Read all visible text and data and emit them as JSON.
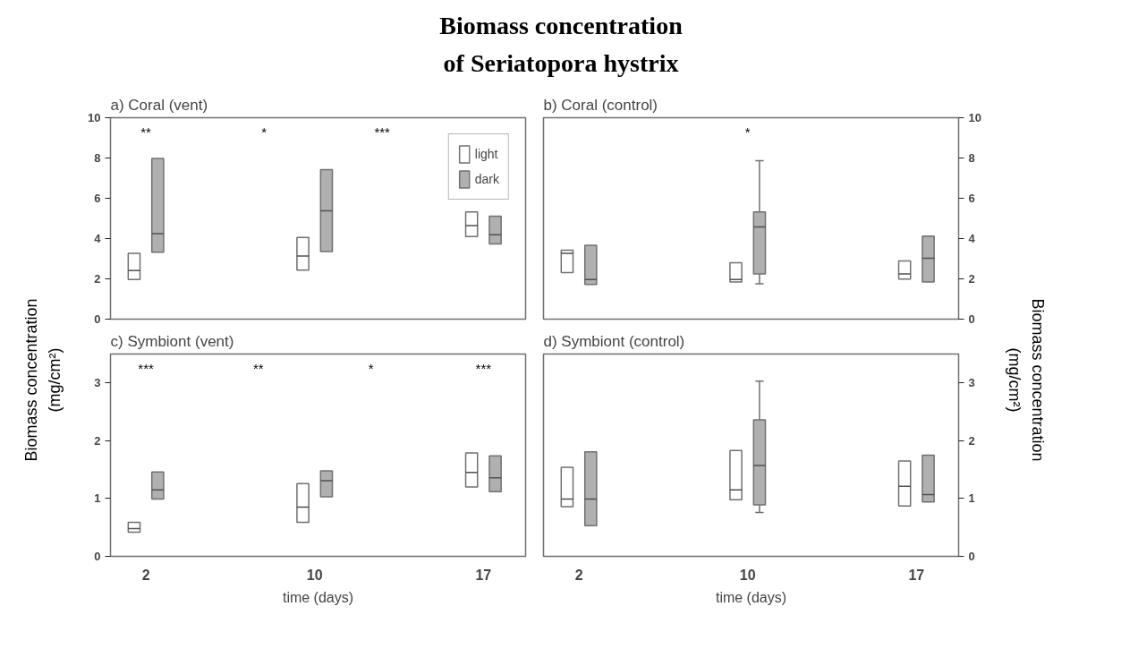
{
  "chart_data": [
    {
      "type": "box",
      "title": "Biomass concentration\nof Seriatopora hystrix",
      "subtitle": "a) Coral (vent)",
      "ylabel": "Biomass concentration\n(mg/cm²)",
      "categories": [
        "2",
        "10",
        "17"
      ],
      "ylim": [
        0,
        10
      ],
      "yticks": [
        0,
        2,
        4,
        6,
        8,
        10
      ],
      "tick_labels": "y",
      "legend": "top right",
      "series": [
        {
          "name": "light",
          "color": "#ffffff",
          "boxes": [
            {
              "low": 1.97,
              "q1": 1.97,
              "median": 2.41,
              "q3": 3.27,
              "high": 3.27
            },
            {
              "low": 2.43,
              "q1": 2.43,
              "median": 3.13,
              "q3": 4.06,
              "high": 4.06
            },
            {
              "low": 4.1,
              "q1": 4.1,
              "median": 4.65,
              "q3": 5.32,
              "high": 5.32
            }
          ]
        },
        {
          "name": "dark",
          "color": "#b0b0b0",
          "boxes": [
            {
              "low": 3.32,
              "q1": 3.32,
              "median": 4.24,
              "q3": 7.98,
              "high": 7.98
            },
            {
              "low": 3.36,
              "q1": 3.36,
              "median": 5.38,
              "q3": 7.42,
              "high": 7.42
            },
            {
              "low": 3.73,
              "q1": 3.73,
              "median": 4.19,
              "q3": 5.11,
              "high": 5.11
            }
          ]
        }
      ],
      "annotations": [
        "**",
        "*",
        "***"
      ]
    },
    {
      "type": "box",
      "subtitle": "b) Coral (control)",
      "y2label": "Biomass concentration\n(mg/cm²)",
      "categories": [
        "2",
        "10",
        "17"
      ],
      "y2lim": [
        0,
        10
      ],
      "y2ticks": [
        0,
        2,
        4,
        6,
        8,
        10
      ],
      "tick_labels": "y",
      "series": [
        {
          "color": "#ffffff",
          "axis": "y2",
          "boxes": [
            {
              "low": 2.31,
              "q1": 2.31,
              "median": 3.27,
              "q3": 3.42,
              "high": 3.42
            },
            {
              "low": 1.84,
              "q1": 1.84,
              "median": 1.97,
              "q3": 2.8,
              "high": 2.8
            },
            {
              "low": 1.99,
              "q1": 1.99,
              "median": 2.24,
              "q3": 2.89,
              "high": 2.89
            }
          ]
        },
        {
          "color": "#b0b0b0",
          "axis": "y2",
          "boxes": [
            {
              "low": 1.72,
              "q1": 1.72,
              "median": 1.97,
              "q3": 3.67,
              "high": 3.67
            },
            {
              "low": 1.76,
              "q1": 2.24,
              "median": 4.58,
              "q3": 5.32,
              "high": 7.87
            },
            {
              "low": 1.84,
              "q1": 1.84,
              "median": 3.02,
              "q3": 4.12,
              "high": 4.12
            }
          ]
        }
      ],
      "annotations": [
        "*"
      ]
    },
    {
      "type": "box",
      "subtitle": "c) Symbiont (vent)",
      "xlabel": "time (days)",
      "categories": [
        "2",
        "10",
        "17"
      ],
      "ylim": [
        0,
        3.5
      ],
      "yticks": [
        0,
        1,
        2,
        3
      ],
      "series": [
        {
          "color": "#ffffff",
          "boxes": [
            {
              "low": 0.42,
              "q1": 0.42,
              "median": 0.48,
              "q3": 0.59,
              "high": 0.59
            },
            {
              "low": 0.59,
              "q1": 0.59,
              "median": 0.85,
              "q3": 1.26,
              "high": 1.26
            },
            {
              "low": 1.2,
              "q1": 1.2,
              "median": 1.45,
              "q3": 1.79,
              "high": 1.79
            }
          ]
        },
        {
          "color": "#b0b0b0",
          "boxes": [
            {
              "low": 0.99,
              "q1": 0.99,
              "median": 1.15,
              "q3": 1.46,
              "high": 1.46
            },
            {
              "low": 1.03,
              "q1": 1.03,
              "median": 1.31,
              "q3": 1.48,
              "high": 1.48
            },
            {
              "low": 1.12,
              "q1": 1.12,
              "median": 1.36,
              "q3": 1.74,
              "high": 1.74
            }
          ]
        }
      ],
      "annotations": [
        "***",
        "**",
        "*",
        "***"
      ]
    },
    {
      "type": "box",
      "subtitle": "d) Symbiont (control)",
      "xlabel": "time (days)",
      "categories": [
        "2",
        "10",
        "17"
      ],
      "y2lim": [
        0,
        3.5
      ],
      "y2ticks": [
        0,
        1,
        2,
        3
      ],
      "series": [
        {
          "color": "#ffffff",
          "axis": "y2",
          "boxes": [
            {
              "low": 0.86,
              "q1": 0.86,
              "median": 0.99,
              "q3": 1.54,
              "high": 1.54
            },
            {
              "low": 0.98,
              "q1": 0.98,
              "median": 1.15,
              "q3": 1.83,
              "high": 1.83
            },
            {
              "low": 0.87,
              "q1": 0.87,
              "median": 1.21,
              "q3": 1.65,
              "high": 1.65
            }
          ]
        },
        {
          "color": "#b0b0b0",
          "axis": "y2",
          "boxes": [
            {
              "low": 0.53,
              "q1": 0.53,
              "median": 0.99,
              "q3": 1.81,
              "high": 1.81
            },
            {
              "low": 0.76,
              "q1": 0.89,
              "median": 1.57,
              "q3": 2.36,
              "high": 3.03
            },
            {
              "low": 0.94,
              "q1": 0.94,
              "median": 1.07,
              "q3": 1.75,
              "high": 1.75
            }
          ]
        }
      ]
    }
  ]
}
